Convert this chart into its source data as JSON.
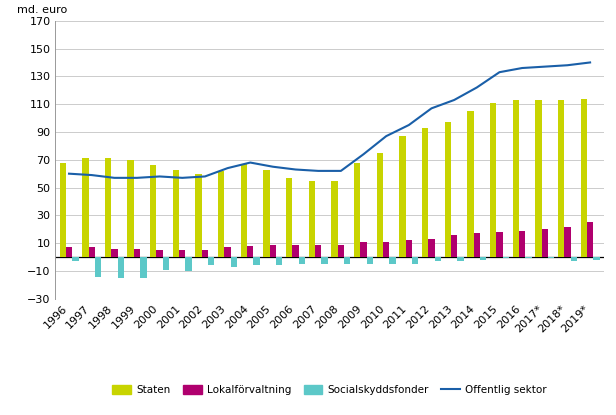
{
  "years": [
    "1996",
    "1997",
    "1998",
    "1999",
    "2000",
    "2001",
    "2002",
    "2003",
    "2004",
    "2005",
    "2006",
    "2007",
    "2008",
    "2009",
    "2010",
    "2011",
    "2012",
    "2013",
    "2014",
    "2015",
    "2016",
    "2017*",
    "2018*",
    "2019*"
  ],
  "staten": [
    68,
    71,
    71,
    70,
    66,
    63,
    60,
    62,
    67,
    63,
    57,
    55,
    55,
    68,
    75,
    87,
    93,
    97,
    105,
    111,
    113,
    113,
    113,
    114
  ],
  "lokalforvaltning": [
    7,
    7,
    6,
    6,
    5,
    5,
    5,
    7,
    8,
    9,
    9,
    9,
    9,
    11,
    11,
    12,
    13,
    16,
    17,
    18,
    19,
    20,
    22,
    25
  ],
  "socialskyddsfonder": [
    -3,
    -14,
    -15,
    -15,
    -9,
    -10,
    -6,
    -7,
    -6,
    -6,
    -5,
    -5,
    -5,
    -5,
    -5,
    -5,
    -3,
    -3,
    -2,
    -1,
    -1,
    -1,
    -3,
    -2
  ],
  "offentlig_sektor": [
    60,
    59,
    57,
    57,
    58,
    57,
    58,
    64,
    68,
    65,
    63,
    62,
    62,
    74,
    87,
    95,
    107,
    113,
    122,
    133,
    136,
    137,
    138,
    140
  ],
  "ylim": [
    -30,
    170
  ],
  "yticks": [
    -30,
    -10,
    10,
    30,
    50,
    70,
    90,
    110,
    130,
    150,
    170
  ],
  "ylabel": "md. euro",
  "color_staten": "#c8d400",
  "color_lokalforvaltning": "#b0006e",
  "color_socialskyddsfonder": "#5cc8c8",
  "color_offentlig": "#1a5fa8",
  "legend_staten": "Staten",
  "legend_lokalforvaltning": "Lokalförvaltning",
  "legend_socialskyddsfonder": "Socialskyddsfonder",
  "legend_offentlig": "Offentlig sektor",
  "bar_width": 0.28,
  "background_color": "#ffffff",
  "grid_color": "#cccccc"
}
